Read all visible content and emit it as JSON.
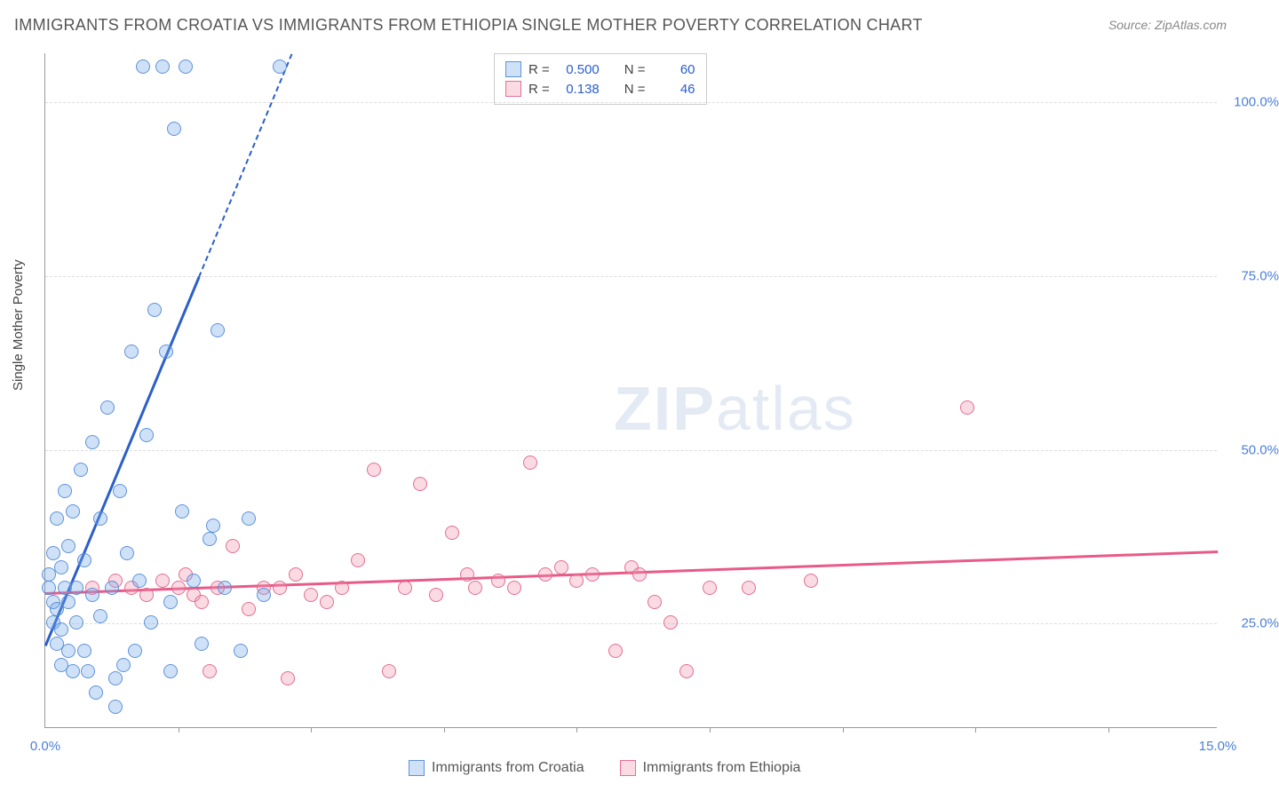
{
  "title": "IMMIGRANTS FROM CROATIA VS IMMIGRANTS FROM ETHIOPIA SINGLE MOTHER POVERTY CORRELATION CHART",
  "source_label": "Source: ZipAtlas.com",
  "watermark_a": "ZIP",
  "watermark_b": "atlas",
  "chart": {
    "type": "scatter",
    "ylabel": "Single Mother Poverty",
    "xlim": [
      0.0,
      15.0
    ],
    "ylim": [
      10.0,
      107.0
    ],
    "yticks": [
      25.0,
      50.0,
      75.0,
      100.0
    ],
    "ytick_labels": [
      "25.0%",
      "50.0%",
      "75.0%",
      "100.0%"
    ],
    "xtick_labels": {
      "left": "0.0%",
      "right": "15.0%"
    },
    "xtick_positions": [
      1.7,
      3.4,
      5.1,
      6.8,
      8.5,
      10.2,
      11.9,
      13.6
    ],
    "background_color": "#ffffff",
    "grid_color": "#dddddd",
    "axis_color": "#999999",
    "series": {
      "croatia": {
        "label": "Immigrants from Croatia",
        "fill_color": "rgba(117,169,232,0.35)",
        "stroke_color": "rgba(82,139,214,0.9)",
        "line_color": "#2b5fc9",
        "R": "0.500",
        "N": "60",
        "trend": {
          "x1": 0.0,
          "y1": 22.0,
          "x2": 3.15,
          "y2": 107.0,
          "dash_from_y": 75.0
        },
        "points": [
          [
            0.05,
            30
          ],
          [
            0.05,
            32
          ],
          [
            0.1,
            28
          ],
          [
            0.1,
            35
          ],
          [
            0.1,
            25
          ],
          [
            0.15,
            22
          ],
          [
            0.15,
            27
          ],
          [
            0.15,
            40
          ],
          [
            0.2,
            24
          ],
          [
            0.2,
            33
          ],
          [
            0.2,
            19
          ],
          [
            0.25,
            30
          ],
          [
            0.25,
            44
          ],
          [
            0.3,
            28
          ],
          [
            0.3,
            36
          ],
          [
            0.3,
            21
          ],
          [
            0.35,
            18
          ],
          [
            0.35,
            41
          ],
          [
            0.4,
            25
          ],
          [
            0.4,
            30
          ],
          [
            0.45,
            47
          ],
          [
            0.5,
            21
          ],
          [
            0.5,
            34
          ],
          [
            0.55,
            18
          ],
          [
            0.6,
            51
          ],
          [
            0.65,
            15
          ],
          [
            0.7,
            26
          ],
          [
            0.7,
            40
          ],
          [
            0.8,
            56
          ],
          [
            0.85,
            30
          ],
          [
            0.9,
            17
          ],
          [
            0.95,
            44
          ],
          [
            1.0,
            19
          ],
          [
            1.05,
            35
          ],
          [
            1.1,
            64
          ],
          [
            1.15,
            21
          ],
          [
            1.2,
            31
          ],
          [
            1.25,
            105
          ],
          [
            1.3,
            52
          ],
          [
            1.35,
            25
          ],
          [
            1.4,
            70
          ],
          [
            1.5,
            105
          ],
          [
            1.55,
            64
          ],
          [
            1.6,
            28
          ],
          [
            1.65,
            96
          ],
          [
            1.75,
            41
          ],
          [
            1.8,
            105
          ],
          [
            1.9,
            31
          ],
          [
            2.0,
            22
          ],
          [
            2.1,
            37
          ],
          [
            2.15,
            39
          ],
          [
            2.2,
            67
          ],
          [
            2.3,
            30
          ],
          [
            2.5,
            21
          ],
          [
            2.6,
            40
          ],
          [
            2.8,
            29
          ],
          [
            3.0,
            105
          ],
          [
            1.6,
            18
          ],
          [
            0.9,
            13
          ],
          [
            0.6,
            29
          ]
        ]
      },
      "ethiopia": {
        "label": "Immigrants from Ethiopia",
        "fill_color": "rgba(240,150,175,0.35)",
        "stroke_color": "rgba(225,100,140,0.9)",
        "line_color": "#e85a87",
        "R": "0.138",
        "N": "46",
        "trend": {
          "x1": 0.0,
          "y1": 29.5,
          "x2": 15.0,
          "y2": 35.5
        },
        "points": [
          [
            0.6,
            30
          ],
          [
            0.9,
            31
          ],
          [
            1.1,
            30
          ],
          [
            1.3,
            29
          ],
          [
            1.5,
            31
          ],
          [
            1.7,
            30
          ],
          [
            1.8,
            32
          ],
          [
            1.9,
            29
          ],
          [
            2.0,
            28
          ],
          [
            2.1,
            18
          ],
          [
            2.2,
            30
          ],
          [
            2.4,
            36
          ],
          [
            2.6,
            27
          ],
          [
            2.8,
            30
          ],
          [
            3.0,
            30
          ],
          [
            3.1,
            17
          ],
          [
            3.2,
            32
          ],
          [
            3.4,
            29
          ],
          [
            3.6,
            28
          ],
          [
            3.8,
            30
          ],
          [
            4.0,
            34
          ],
          [
            4.2,
            47
          ],
          [
            4.4,
            18
          ],
          [
            4.6,
            30
          ],
          [
            4.8,
            45
          ],
          [
            5.0,
            29
          ],
          [
            5.2,
            38
          ],
          [
            5.4,
            32
          ],
          [
            5.8,
            31
          ],
          [
            6.0,
            30
          ],
          [
            6.2,
            48
          ],
          [
            6.4,
            32
          ],
          [
            6.6,
            33
          ],
          [
            6.8,
            31
          ],
          [
            7.0,
            32
          ],
          [
            7.3,
            21
          ],
          [
            7.5,
            33
          ],
          [
            7.8,
            28
          ],
          [
            8.0,
            25
          ],
          [
            8.2,
            18
          ],
          [
            8.5,
            30
          ],
          [
            9.0,
            30
          ],
          [
            9.8,
            31
          ],
          [
            7.6,
            32
          ],
          [
            11.8,
            56
          ],
          [
            5.5,
            30
          ]
        ]
      }
    }
  },
  "stats_box": {
    "r_label": "R =",
    "n_label": "N ="
  }
}
